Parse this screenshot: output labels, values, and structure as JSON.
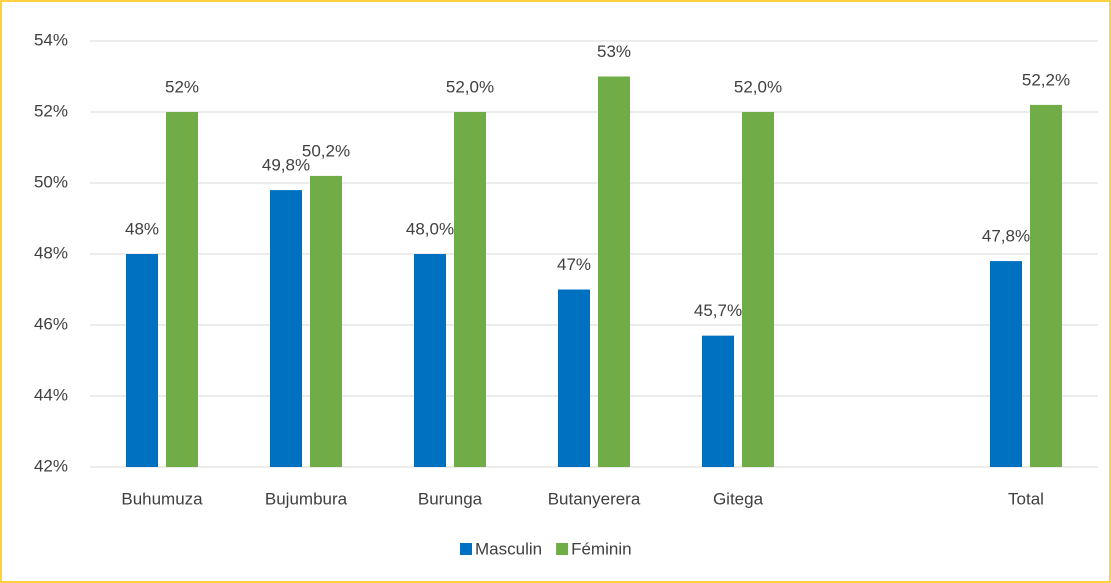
{
  "chart_data": {
    "type": "bar",
    "categories": [
      "Buhumuza",
      "Bujumbura",
      "Burunga",
      "Butanyerera",
      "Gitega",
      null,
      "Total"
    ],
    "series": [
      {
        "name": "Masculin",
        "color": "#0070c0",
        "values": [
          48,
          49.8,
          48,
          47,
          45.7,
          null,
          47.8
        ],
        "value_labels": [
          "48%",
          "49,8%",
          "48,0%",
          "47%",
          "45,7%",
          null,
          "47,8%"
        ]
      },
      {
        "name": "Féminin",
        "color": "#70ad47",
        "values": [
          52,
          50.2,
          52,
          53,
          52,
          null,
          52.2
        ],
        "value_labels": [
          "52%",
          "50,2%",
          "52,0%",
          "53%",
          "52,0%",
          null,
          "52,2%"
        ]
      }
    ],
    "ylim": [
      42,
      54
    ],
    "yticks": [
      {
        "value": 42,
        "label": "42%"
      },
      {
        "value": 44,
        "label": "44%"
      },
      {
        "value": 46,
        "label": "46%"
      },
      {
        "value": 48,
        "label": "48%"
      },
      {
        "value": 50,
        "label": "50%"
      },
      {
        "value": 52,
        "label": "52%"
      },
      {
        "value": 54,
        "label": "54%"
      }
    ],
    "grid": true,
    "legend": "bottom"
  }
}
